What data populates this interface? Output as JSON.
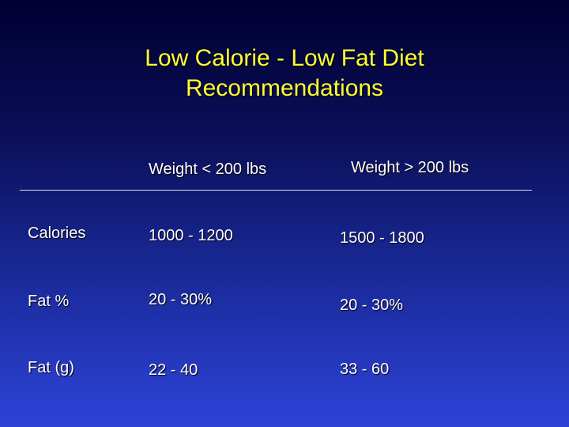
{
  "slide": {
    "title_line1": "Low Calorie - Low Fat Diet",
    "title_line2": "Recommendations"
  },
  "table": {
    "columns": [
      "Weight < 200 lbs",
      "Weight > 200 lbs"
    ],
    "rows": [
      {
        "label": "Calories",
        "values": [
          "1000 - 1200",
          "1500 - 1800"
        ]
      },
      {
        "label": "Fat %",
        "values": [
          "20 - 30%",
          "20 - 30%"
        ]
      },
      {
        "label": "Fat (g)",
        "values": [
          "22 - 40",
          "33 - 60"
        ]
      }
    ]
  },
  "colors": {
    "title": "#ffff33",
    "text": "#ffffff",
    "background_top": "#000033",
    "background_bottom": "#2d43d8"
  }
}
